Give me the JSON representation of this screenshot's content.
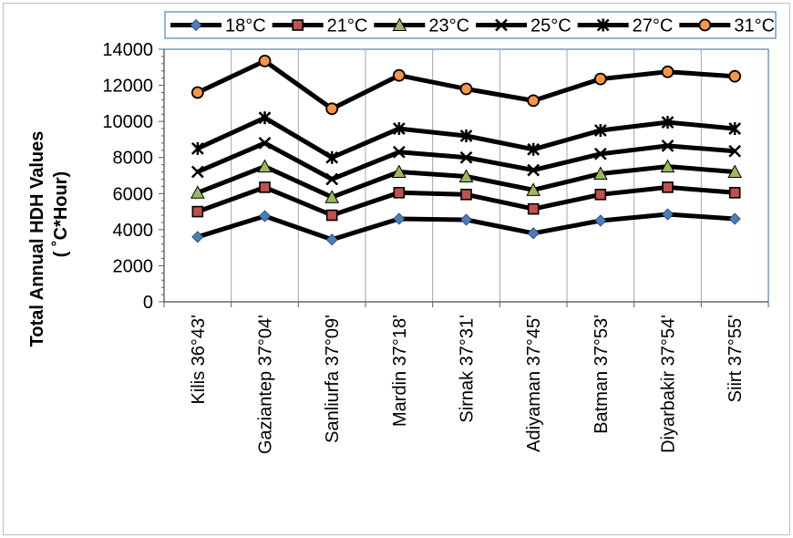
{
  "chart_data": {
    "type": "line",
    "ylabel_line1": "Total Annual HDH Values",
    "ylabel_line2": "( ˚C*Hour)",
    "xlabel": "",
    "ylim": [
      0,
      14000
    ],
    "yticks": [
      "0",
      "2000",
      "4000",
      "6000",
      "8000",
      "10000",
      "12000",
      "14000"
    ],
    "grid": "vertical",
    "legend_position": "top",
    "categories": [
      "Kilis 36°43'",
      "Gaziantep 37°04'",
      "Sanliurfa 37°09'",
      "Mardin 37°18'",
      "Sirnak 37°31'",
      "Adiyaman 37°45'",
      "Batman 37°53'",
      "Diyarbakir 37°54'",
      "Siirt 37°55'"
    ],
    "series": [
      {
        "name": "18°C",
        "marker": "diamond",
        "marker_color": "#4a7ebb",
        "values": [
          3600,
          4750,
          3450,
          4600,
          4550,
          3800,
          4500,
          4850,
          4600
        ]
      },
      {
        "name": "21°C",
        "marker": "square",
        "marker_color": "#c0504d",
        "values": [
          5000,
          6350,
          4800,
          6050,
          5950,
          5150,
          5950,
          6350,
          6050
        ]
      },
      {
        "name": "23°C",
        "marker": "triangle",
        "marker_color": "#9bbb59",
        "values": [
          6050,
          7500,
          5800,
          7200,
          6950,
          6200,
          7100,
          7500,
          7200
        ]
      },
      {
        "name": "25°C",
        "marker": "x",
        "marker_color": "#000000",
        "values": [
          7200,
          8800,
          6800,
          8300,
          8000,
          7300,
          8200,
          8650,
          8350
        ]
      },
      {
        "name": "27°C",
        "marker": "star",
        "marker_color": "#000000",
        "values": [
          8500,
          10200,
          8000,
          9600,
          9200,
          8450,
          9500,
          9950,
          9600
        ]
      },
      {
        "name": "31°C",
        "marker": "circle",
        "marker_color": "#f79646",
        "values": [
          11600,
          13350,
          10700,
          12550,
          11800,
          11150,
          12350,
          12750,
          12500
        ]
      }
    ]
  }
}
